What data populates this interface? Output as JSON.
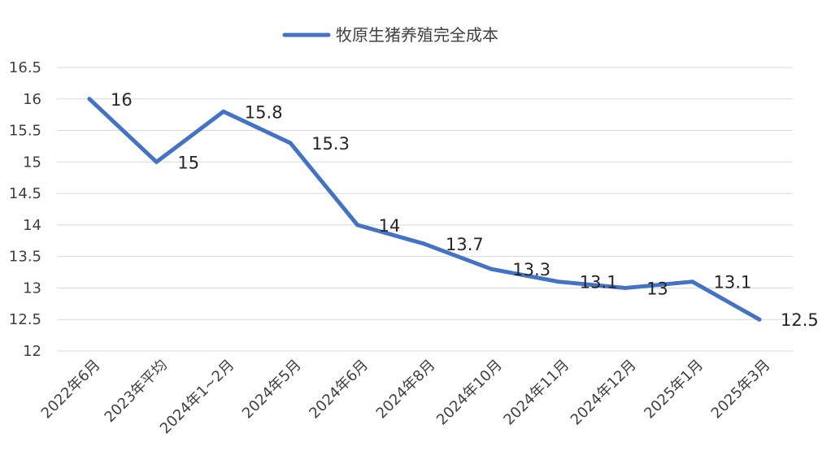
{
  "chart_data": {
    "type": "line",
    "legend_position": "top",
    "grid": true,
    "ylim": [
      12,
      16.5
    ],
    "y_ticks": [
      "16.5",
      "16",
      "15.5",
      "15",
      "14.5",
      "14",
      "13.5",
      "13",
      "12.5",
      "12"
    ],
    "categories": [
      "2022年6月",
      "2023年平均",
      "2024年1~2月",
      "2024年5月",
      "2024年6月",
      "2024年8月",
      "2024年10月",
      "2024年11月",
      "2024年12月",
      "2025年1月",
      "2025年3月"
    ],
    "series": [
      {
        "name": "牧原生猪养殖完全成本",
        "color": "#4472c4",
        "values": [
          16,
          15,
          15.8,
          15.3,
          14,
          13.7,
          13.3,
          13.1,
          13,
          13.1,
          12.5
        ],
        "labels": [
          "16",
          "15",
          "15.8",
          "15.3",
          "14",
          "13.7",
          "13.3",
          "13.1",
          "13",
          "13.1",
          "12.5"
        ]
      }
    ]
  }
}
